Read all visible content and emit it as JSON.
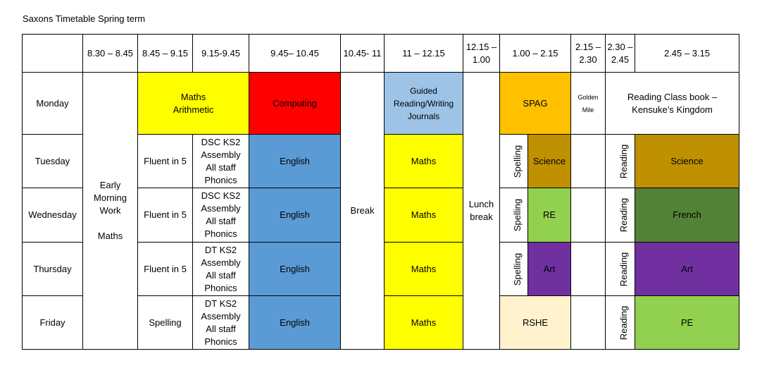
{
  "title": "Saxons Timetable Spring term",
  "times": {
    "t1": "8.30 – 8.45",
    "t2": "8.45 – 9.15",
    "t3": "9.15-9.45",
    "t4": "9.45– 10.45",
    "t5": "10.45- 11",
    "t6": "11 – 12.15",
    "t7": "12.15 – 1.00",
    "t8": "1.00 – 2.15",
    "t9": "2.15 – 2.30",
    "t10": "2.30 – 2.45",
    "t11": "2.45 – 3.15"
  },
  "days": {
    "monday": "Monday",
    "tuesday": "Tuesday",
    "wednesday": "Wednesday",
    "thursday": "Thursday",
    "friday": "Friday"
  },
  "merged": {
    "early_morning": "Early Morning Work",
    "early_morning_sub": "Maths",
    "break": "Break",
    "lunch": "Lunch break"
  },
  "monday": {
    "maths": "Maths Arithmetic",
    "computing": "Computing",
    "guided": "Guided Reading/Writing Journals",
    "spag": "SPAG",
    "golden": "Golden Mile",
    "reading_book": "Reading Class book – Kensuke’s Kingdom"
  },
  "tuesday": {
    "fluent": "Fluent in 5",
    "assembly": [
      "DSC KS2",
      "Assembly",
      "All staff",
      "Phonics"
    ],
    "english": "English",
    "maths": "Maths",
    "spelling": "Spelling",
    "science": "Science",
    "reading": "Reading",
    "afternoon": "Science"
  },
  "wednesday": {
    "fluent": "Fluent in 5",
    "assembly": [
      "DSC KS2",
      "Assembly",
      "All staff",
      "Phonics"
    ],
    "english": "English",
    "maths": "Maths",
    "spelling": "Spelling",
    "subject": "RE",
    "reading": "Reading",
    "afternoon": "French"
  },
  "thursday": {
    "fluent": "Fluent in 5",
    "assembly": [
      "DT KS2",
      "Assembly",
      "All staff",
      "Phonics"
    ],
    "english": "English",
    "maths": "Maths",
    "spelling": "Spelling",
    "subject": "Art",
    "reading": "Reading",
    "afternoon": "Art"
  },
  "friday": {
    "spelling": "Spelling",
    "assembly": [
      "DT KS2",
      "Assembly",
      "All staff",
      "Phonics"
    ],
    "english": "English",
    "maths": "Maths",
    "rshe": "RSHE",
    "reading": "Reading",
    "afternoon": "PE"
  },
  "colors": {
    "yellow": "#ffff00",
    "red": "#ff0000",
    "light_blue": "#9dc3e6",
    "blue": "#5b9bd5",
    "orange": "#ffc000",
    "gold": "#bf9000",
    "lime": "#92d050",
    "purple": "#7030a0",
    "dark_green": "#538135",
    "cream": "#fff2cc"
  }
}
